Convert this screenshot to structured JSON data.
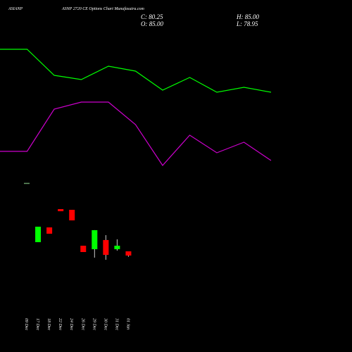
{
  "header": {
    "symbol": "ASIANP",
    "title": "ASNP 2720 CE Options Chart Munafasutra.com",
    "close": "C: 80.25",
    "high": "H: 85.00",
    "open": "O: 85.00",
    "low": "L: 78.95"
  },
  "chart_data": [
    {
      "type": "line",
      "categories": [
        null,
        null,
        null,
        null,
        null,
        null,
        null,
        null,
        null,
        null,
        null
      ],
      "ylim": [
        0,
        100
      ],
      "series": [
        {
          "color": "#00ff00",
          "values": [
            90,
            90,
            71.5,
            68.5,
            78,
            74.5,
            61,
            70,
            59.5,
            63,
            59.5
          ]
        },
        {
          "color": "#cc00cc",
          "values": [
            17.5,
            17.5,
            47.5,
            52.5,
            52.5,
            36.5,
            7.5,
            29,
            16.5,
            24,
            11
          ]
        }
      ]
    },
    {
      "type": "candlestick",
      "categories": [
        "09 Dec",
        "17 Dec",
        "18 Dec",
        "22 Dec",
        "24 Dec",
        "26 Dec",
        "29 Dec",
        "30 Dec",
        "31 Dec",
        "01 Jan"
      ],
      "ylim": [
        50,
        250
      ],
      "up_color": "#00ff00",
      "down_color": "#ff0000",
      "flat_color": "#669966",
      "open": [
        162,
        95.3,
        111.9,
        132.5,
        131.7,
        91.3,
        87.4,
        97.7,
        87.4,
        85
      ],
      "high": [
        162,
        112.7,
        111.9,
        132.5,
        131.7,
        91.3,
        108.8,
        103.2,
        98.5,
        85
      ],
      "low": [
        162,
        95.3,
        104.8,
        130.1,
        119.8,
        84.2,
        77.9,
        75.5,
        85.8,
        78.95
      ],
      "close": [
        162,
        112.7,
        104.8,
        130.1,
        119.8,
        84.2,
        108.8,
        81.0,
        91.3,
        80.25
      ]
    }
  ]
}
